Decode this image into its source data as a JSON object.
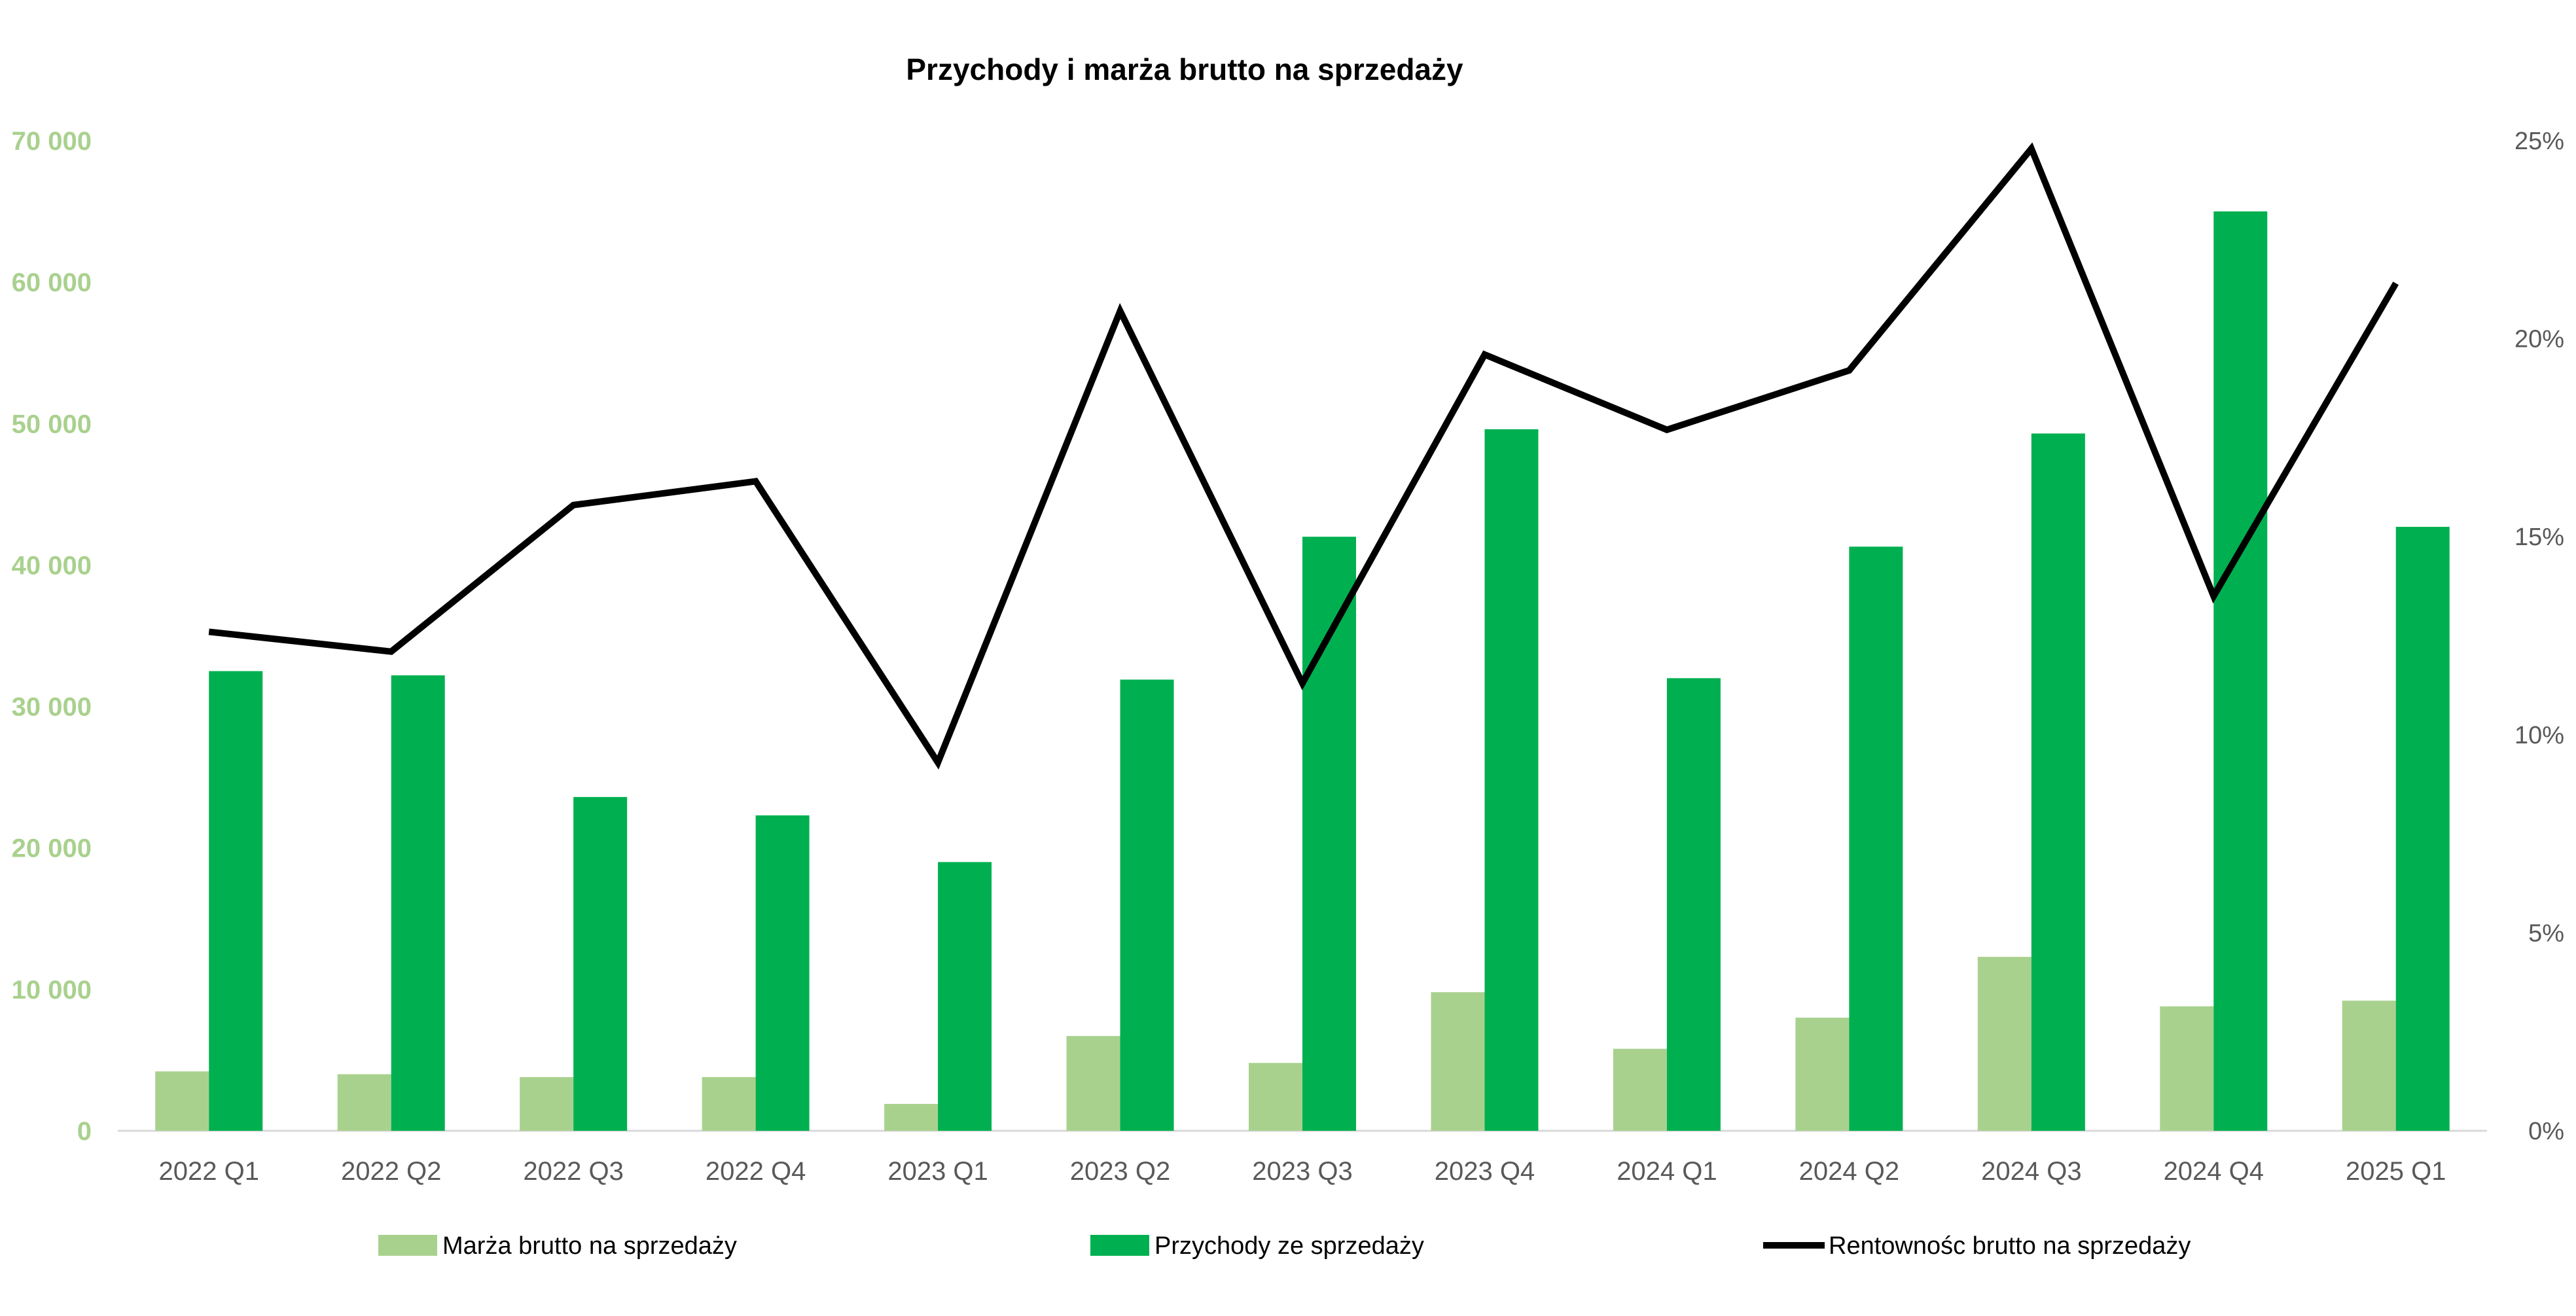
{
  "chart_data": {
    "type": "bar",
    "title": "Przychody i marża brutto na sprzedaży",
    "categories": [
      "2022 Q1",
      "2022 Q2",
      "2022 Q3",
      "2022 Q4",
      "2023 Q1",
      "2023 Q2",
      "2023 Q3",
      "2023 Q4",
      "2024 Q1",
      "2024 Q2",
      "2024 Q3",
      "2024 Q4",
      "2025 Q1"
    ],
    "series": [
      {
        "name": "Marża brutto na sprzedaży",
        "type": "bar",
        "axis": "left",
        "color": "#A9D18E",
        "values": [
          4200,
          4000,
          3800,
          3800,
          1900,
          6700,
          4800,
          9800,
          5800,
          8000,
          12300,
          8800,
          9200
        ]
      },
      {
        "name": "Przychody ze sprzedaży",
        "type": "bar",
        "axis": "left",
        "color": "#00B050",
        "values": [
          32500,
          32200,
          23600,
          22300,
          19000,
          31900,
          42000,
          49600,
          32000,
          41300,
          49300,
          65000,
          42700
        ]
      },
      {
        "name": "Rentownośc brutto na sprzedaży",
        "type": "line",
        "axis": "right",
        "color": "#000000",
        "values": [
          12.6,
          12.1,
          15.8,
          16.4,
          9.3,
          20.7,
          11.3,
          19.6,
          17.7,
          19.2,
          24.8,
          13.5,
          21.4
        ]
      }
    ],
    "y_left": {
      "min": 0,
      "max": 70000,
      "ticks": [
        "0",
        "10 000",
        "20 000",
        "30 000",
        "40 000",
        "50 000",
        "60 000",
        "70 000"
      ],
      "tick_color": "#A9D18E"
    },
    "y_right": {
      "min": 0,
      "max": 25,
      "ticks": [
        "0%",
        "5%",
        "10%",
        "15%",
        "20%",
        "25%"
      ]
    },
    "grid": false,
    "legend_position": "bottom"
  }
}
